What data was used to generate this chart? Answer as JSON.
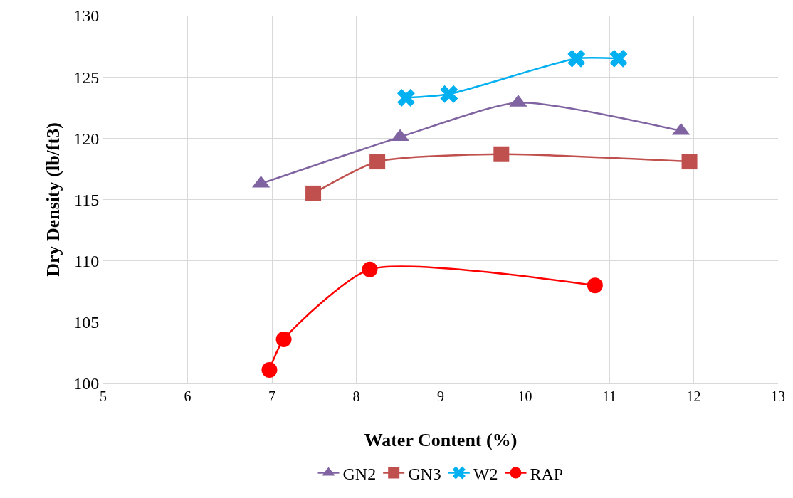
{
  "chart_data": {
    "type": "line",
    "xlabel": "Water Content (%)",
    "ylabel": "Dry Density (lb/ft3)",
    "xlim": [
      5,
      13
    ],
    "xticks": [
      5,
      6,
      7,
      8,
      9,
      10,
      11,
      12,
      13
    ],
    "ylim": [
      100,
      130
    ],
    "yticks": [
      100,
      105,
      110,
      115,
      120,
      125,
      130
    ],
    "grid": true,
    "legend": "bottom",
    "line_style": "solid",
    "series": [
      {
        "name": "GN2",
        "color": "#8064a2",
        "marker": "triangle",
        "x": [
          6.87,
          8.52,
          9.92,
          11.85
        ],
        "values": [
          116.3,
          120.1,
          122.9,
          120.6
        ]
      },
      {
        "name": "GN3",
        "color": "#c0504d",
        "marker": "square",
        "x": [
          7.49,
          8.25,
          9.72,
          11.95
        ],
        "values": [
          115.5,
          118.1,
          118.7,
          118.1
        ]
      },
      {
        "name": "W2",
        "color": "#00b0f0",
        "marker": "cross",
        "x": [
          8.59,
          9.1,
          10.61,
          11.11
        ],
        "values": [
          123.3,
          123.6,
          126.5,
          126.5
        ]
      },
      {
        "name": "RAP",
        "color": "#ff0000",
        "marker": "circle",
        "x": [
          6.97,
          7.14,
          8.16,
          10.83
        ],
        "values": [
          101.1,
          103.6,
          109.3,
          108.0
        ]
      }
    ]
  }
}
